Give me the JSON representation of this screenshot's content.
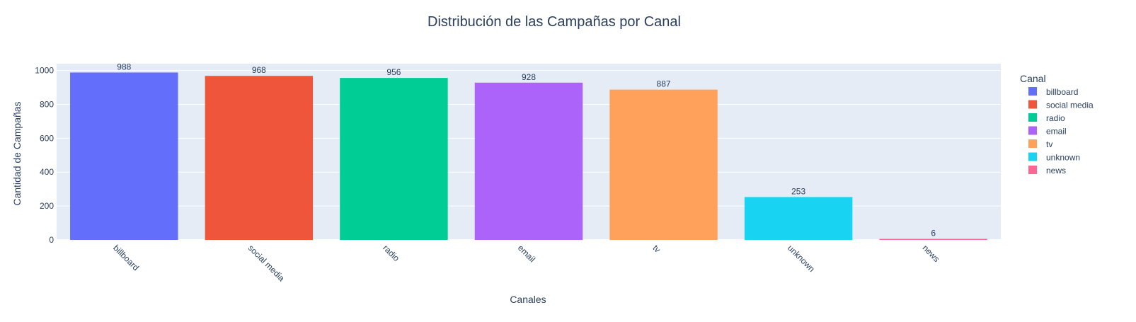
{
  "chart_data": {
    "type": "bar",
    "title": "Distribución de las Campañas por Canal",
    "xlabel": "Canales",
    "ylabel": "Cantidad de Campañas",
    "categories": [
      "billboard",
      "social media",
      "radio",
      "email",
      "tv",
      "unknown",
      "news"
    ],
    "values": [
      988,
      968,
      956,
      928,
      887,
      253,
      6
    ],
    "colors": [
      "#636efa",
      "#EF553B",
      "#00cc96",
      "#ab63fa",
      "#FFA15A",
      "#19d3f3",
      "#FF6692"
    ],
    "yticks": [
      0,
      200,
      400,
      600,
      800,
      1000
    ],
    "ylim": [
      0,
      1040
    ],
    "grid": true,
    "legend": {
      "title": "Canal",
      "position": "right",
      "items": [
        "billboard",
        "social media",
        "radio",
        "email",
        "tv",
        "unknown",
        "news"
      ]
    }
  }
}
